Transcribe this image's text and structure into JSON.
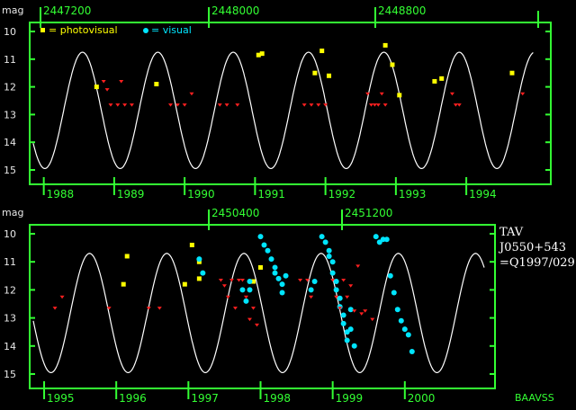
{
  "chart_data": [
    {
      "type": "scatter",
      "ylabel": "mag",
      "ylim": [
        10,
        15
      ],
      "y_inverted": true,
      "yticks": [
        "10",
        "11",
        "12",
        "13",
        "14",
        "15"
      ],
      "jd_ticks": [
        "2447200",
        "2448000",
        "2448800"
      ],
      "year_ticks": [
        "1988",
        "1989",
        "1990",
        "1991",
        "1992",
        "1993",
        "1994"
      ],
      "xlim": [
        1987.8,
        1995.2
      ],
      "legend": [
        {
          "name": "= photovisual",
          "color": "#ffff00"
        },
        {
          "name": "= visual",
          "color": "#00e5ff"
        }
      ],
      "model_curve": {
        "min": 10.75,
        "max": 14.95,
        "period_years": 1.07,
        "max_at": 1988.55
      },
      "series": [
        {
          "name": "photovisual",
          "color": "#ffff00",
          "points": [
            [
              1988.75,
              12.0
            ],
            [
              1989.6,
              11.9
            ],
            [
              1991.05,
              10.85
            ],
            [
              1991.1,
              10.8
            ],
            [
              1991.85,
              11.5
            ],
            [
              1991.95,
              10.7
            ],
            [
              1992.05,
              11.6
            ],
            [
              1992.85,
              10.5
            ],
            [
              1992.95,
              11.2
            ],
            [
              1993.05,
              12.3
            ],
            [
              1993.55,
              11.8
            ],
            [
              1993.65,
              11.7
            ],
            [
              1994.65,
              11.5
            ]
          ]
        },
        {
          "name": "visual",
          "color": "#00e5ff",
          "points": []
        },
        {
          "name": "upper limits",
          "color": "#ff2020",
          "points": [
            [
              1988.85,
              11.8
            ],
            [
              1988.9,
              12.1
            ],
            [
              1988.95,
              12.65
            ],
            [
              1989.05,
              12.65
            ],
            [
              1989.1,
              11.8
            ],
            [
              1989.15,
              12.65
            ],
            [
              1989.25,
              12.65
            ],
            [
              1989.8,
              12.65
            ],
            [
              1989.9,
              12.65
            ],
            [
              1990.0,
              12.65
            ],
            [
              1990.1,
              12.25
            ],
            [
              1990.5,
              12.65
            ],
            [
              1990.6,
              12.65
            ],
            [
              1990.75,
              12.65
            ],
            [
              1991.7,
              12.65
            ],
            [
              1991.8,
              12.65
            ],
            [
              1991.9,
              12.65
            ],
            [
              1992.0,
              12.65
            ],
            [
              1992.6,
              12.25
            ],
            [
              1992.65,
              12.65
            ],
            [
              1992.7,
              12.65
            ],
            [
              1992.75,
              12.65
            ],
            [
              1992.8,
              12.25
            ],
            [
              1992.85,
              12.65
            ],
            [
              1993.8,
              12.25
            ],
            [
              1993.85,
              12.65
            ],
            [
              1993.9,
              12.65
            ],
            [
              1994.8,
              12.25
            ]
          ]
        }
      ]
    },
    {
      "type": "scatter",
      "ylabel": "mag",
      "ylim": [
        10,
        15
      ],
      "y_inverted": true,
      "yticks": [
        "10",
        "11",
        "12",
        "13",
        "14",
        "15"
      ],
      "jd_ticks": [
        "2450400",
        "2451200"
      ],
      "year_ticks": [
        "1995",
        "1996",
        "1997",
        "1998",
        "1999",
        "2000"
      ],
      "xlim": [
        1994.8,
        2001.25
      ],
      "annotation": [
        "TAV",
        "J0550+543",
        "=Q1997/029"
      ],
      "credit": "BAAVSS",
      "model_curve": {
        "min": 10.7,
        "max": 14.95,
        "period_years": 1.07,
        "max_at": 1996.7
      },
      "series": [
        {
          "name": "photovisual",
          "color": "#ffff00",
          "points": [
            [
              1996.1,
              11.8
            ],
            [
              1996.15,
              10.8
            ],
            [
              1996.95,
              11.8
            ],
            [
              1997.05,
              10.4
            ],
            [
              1997.15,
              11.6
            ],
            [
              1997.15,
              11.0
            ],
            [
              1997.9,
              11.7
            ],
            [
              1998.0,
              11.2
            ]
          ]
        },
        {
          "name": "visual",
          "color": "#00e5ff",
          "points": [
            [
              1997.15,
              10.9
            ],
            [
              1997.2,
              11.4
            ],
            [
              1997.75,
              12.0
            ],
            [
              1997.8,
              12.4
            ],
            [
              1997.85,
              12.0
            ],
            [
              1997.85,
              11.7
            ],
            [
              1998.0,
              10.1
            ],
            [
              1998.05,
              10.4
            ],
            [
              1998.1,
              10.6
            ],
            [
              1998.15,
              10.9
            ],
            [
              1998.2,
              11.2
            ],
            [
              1998.2,
              11.4
            ],
            [
              1998.25,
              11.6
            ],
            [
              1998.3,
              11.8
            ],
            [
              1998.3,
              12.1
            ],
            [
              1998.35,
              11.5
            ],
            [
              1998.7,
              12.0
            ],
            [
              1998.75,
              11.7
            ],
            [
              1998.85,
              10.1
            ],
            [
              1998.9,
              10.3
            ],
            [
              1998.95,
              10.6
            ],
            [
              1998.95,
              10.8
            ],
            [
              1999.0,
              11.0
            ],
            [
              1999.0,
              11.4
            ],
            [
              1999.05,
              11.7
            ],
            [
              1999.05,
              12.0
            ],
            [
              1999.1,
              12.3
            ],
            [
              1999.1,
              12.6
            ],
            [
              1999.15,
              12.9
            ],
            [
              1999.15,
              13.2
            ],
            [
              1999.2,
              13.5
            ],
            [
              1999.2,
              13.8
            ],
            [
              1999.25,
              13.4
            ],
            [
              1999.25,
              12.7
            ],
            [
              1999.3,
              14.0
            ],
            [
              1999.6,
              10.1
            ],
            [
              1999.65,
              10.3
            ],
            [
              1999.7,
              10.2
            ],
            [
              1999.75,
              10.2
            ],
            [
              1999.8,
              11.5
            ],
            [
              1999.85,
              12.1
            ],
            [
              1999.9,
              12.7
            ],
            [
              1999.95,
              13.1
            ],
            [
              2000.0,
              13.4
            ],
            [
              2000.05,
              13.6
            ],
            [
              2000.1,
              14.2
            ]
          ]
        },
        {
          "name": "upper limits",
          "color": "#ff2020",
          "points": [
            [
              1995.15,
              12.65
            ],
            [
              1995.25,
              12.25
            ],
            [
              1995.9,
              12.65
            ],
            [
              1996.45,
              12.65
            ],
            [
              1996.6,
              12.65
            ],
            [
              1997.45,
              11.65
            ],
            [
              1997.5,
              11.85
            ],
            [
              1997.55,
              12.25
            ],
            [
              1997.6,
              11.65
            ],
            [
              1997.65,
              12.65
            ],
            [
              1997.7,
              11.65
            ],
            [
              1997.75,
              11.65
            ],
            [
              1997.8,
              12.25
            ],
            [
              1997.85,
              13.05
            ],
            [
              1997.9,
              12.65
            ],
            [
              1997.95,
              13.25
            ],
            [
              1998.55,
              11.65
            ],
            [
              1998.65,
              11.65
            ],
            [
              1998.7,
              12.25
            ],
            [
              1999.0,
              11.65
            ],
            [
              1999.05,
              12.25
            ],
            [
              1999.1,
              12.65
            ],
            [
              1999.15,
              11.65
            ],
            [
              1999.2,
              12.25
            ],
            [
              1999.25,
              11.85
            ],
            [
              1999.3,
              12.75
            ],
            [
              1999.35,
              11.15
            ],
            [
              1999.4,
              12.85
            ],
            [
              1999.45,
              12.75
            ],
            [
              1999.55,
              13.05
            ]
          ]
        }
      ]
    }
  ]
}
